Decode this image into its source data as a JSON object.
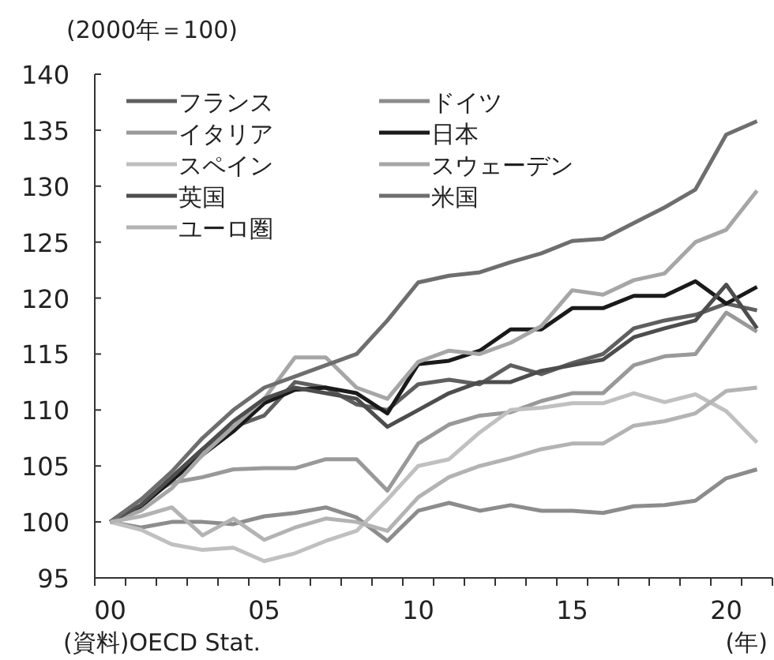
{
  "chart_data": {
    "type": "line",
    "ylabel": "(2000年＝100)",
    "categories": [
      "00",
      null,
      null,
      null,
      null,
      "05",
      null,
      null,
      null,
      null,
      "10",
      null,
      null,
      null,
      null,
      "15",
      null,
      null,
      null,
      null,
      "20",
      null
    ],
    "series": [
      {
        "name": "フランス",
        "color": "#5f5f5f",
        "values": [
          100,
          101.5,
          104,
          106.5,
          108.5,
          109.5,
          112.5,
          112,
          110.5,
          110,
          112.3,
          112.7,
          112.3,
          114,
          113.2,
          114.2,
          115,
          117.3,
          118,
          118.5,
          119.5,
          118.9
        ]
      },
      {
        "name": "ドイツ",
        "color": "#8c8c8c",
        "values": [
          100,
          99.5,
          100,
          100,
          99.8,
          100.5,
          100.8,
          101.3,
          100.4,
          98.3,
          101,
          101.7,
          101,
          101.5,
          101,
          101,
          100.8,
          101.4,
          101.5,
          101.9,
          103.9,
          104.7
        ]
      },
      {
        "name": "イタリア",
        "color": "#999999",
        "values": [
          100,
          102,
          103.5,
          104,
          104.7,
          104.8,
          104.8,
          105.6,
          105.6,
          102.8,
          107,
          108.7,
          109.5,
          109.8,
          110.8,
          111.5,
          111.5,
          114,
          114.8,
          115,
          118.7,
          117
        ]
      },
      {
        "name": "日本",
        "color": "#1a1a1a",
        "values": [
          100,
          101.4,
          103.7,
          106,
          108.1,
          110.6,
          111.8,
          112,
          111.5,
          109.7,
          114.1,
          114.4,
          115.3,
          117.2,
          117.2,
          119.1,
          119.1,
          120.2,
          120.2,
          121.5,
          119.5,
          121
        ]
      },
      {
        "name": "スペイン",
        "color": "#c0c0c0",
        "values": [
          100,
          99.3,
          98,
          97.5,
          97.7,
          96.5,
          97.2,
          98.3,
          99.2,
          102,
          105,
          105.6,
          108,
          110,
          110.2,
          110.6,
          110.6,
          111.5,
          110.7,
          111.4,
          109.9,
          107.1
        ]
      },
      {
        "name": "スウェーデン",
        "color": "#a6a6a6",
        "values": [
          100,
          101,
          103,
          106,
          108.5,
          111,
          114.7,
          114.7,
          112,
          111,
          114.3,
          115.3,
          115,
          116,
          117.5,
          120.7,
          120.3,
          121.6,
          122.2,
          125,
          126.1,
          129.6
        ]
      },
      {
        "name": "英国",
        "color": "#4d4d4d",
        "values": [
          100,
          101.5,
          104,
          106.5,
          109,
          111,
          112,
          111.5,
          111,
          108.5,
          110,
          111.5,
          112.5,
          112.5,
          113.5,
          114,
          114.5,
          116.5,
          117.3,
          118,
          121.2,
          117.3
        ]
      },
      {
        "name": "米国",
        "color": "#6e6e6e",
        "values": [
          100,
          102,
          104.5,
          107.5,
          110,
          112,
          113,
          114,
          115,
          118,
          121.4,
          122,
          122.3,
          123.2,
          124,
          125.1,
          125.3,
          126.7,
          128.1,
          129.7,
          134.6,
          135.8
        ]
      },
      {
        "name": "ユーロ圏",
        "color": "#b3b3b3",
        "values": [
          100,
          100.5,
          101.3,
          98.8,
          100.3,
          98.4,
          99.5,
          100.3,
          100,
          99.2,
          102.2,
          104,
          105,
          105.7,
          106.5,
          107,
          107,
          108.6,
          109,
          109.7,
          111.7,
          112
        ]
      }
    ],
    "ylim": [
      95,
      140
    ],
    "yticks": [
      95,
      100,
      105,
      110,
      115,
      120,
      125,
      130,
      135,
      140
    ],
    "grid": false,
    "legend": "top left",
    "annotations": [
      "(資料)OECD Stat.",
      "(年)"
    ]
  }
}
